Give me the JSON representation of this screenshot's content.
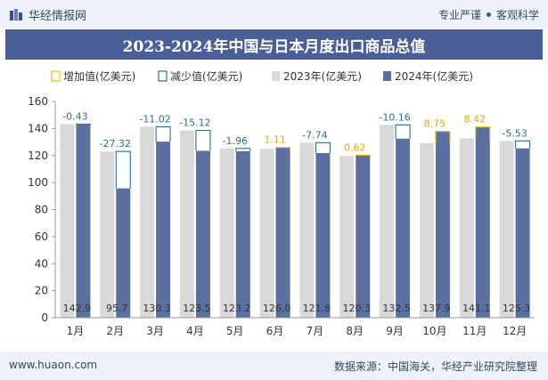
{
  "brand": {
    "name": "华经情报网"
  },
  "tagline": {
    "left": "专业严谨",
    "right": "客观科学"
  },
  "footer": {
    "website": "www.huaon.com",
    "source": "数据来源：中国海关，华经产业研究院整理"
  },
  "colors": {
    "bar_2023": "#d9d9d9",
    "bar_2024": "#5b6fa1",
    "increase": "#f2c200",
    "decrease": "#2e6d8f",
    "title_bg": "#4a5f95",
    "topbar_bg": "#eef1f7"
  },
  "chart_data": {
    "type": "bar",
    "title": "2023-2024年中国与日本月度出口商品总值",
    "categories": [
      "1月",
      "2月",
      "3月",
      "4月",
      "5月",
      "6月",
      "7月",
      "8月",
      "9月",
      "10月",
      "11月",
      "12月"
    ],
    "series": [
      {
        "name": "2023年(亿美元)",
        "values": [
          143.3,
          123.0,
          141.3,
          138.6,
          125.2,
          124.9,
          129.5,
          119.7,
          142.7,
          129.2,
          132.7,
          130.8
        ]
      },
      {
        "name": "2024年(亿美元)",
        "values": [
          142.9,
          95.7,
          130.3,
          123.5,
          123.2,
          126.0,
          121.8,
          120.3,
          132.5,
          137.9,
          141.1,
          125.3
        ]
      }
    ],
    "value_labels": [
      "142.9",
      "95.7",
      "130.3",
      "123.5",
      "123.2",
      "126.0",
      "121.8",
      "120.3",
      "132.5",
      "137.9",
      "141.1",
      "125.3"
    ],
    "change": [
      -0.43,
      -27.32,
      -11.02,
      -15.12,
      -1.96,
      1.11,
      -7.74,
      0.62,
      -10.16,
      8.75,
      8.42,
      -5.53
    ],
    "change_labels": [
      "-0.43",
      "-27.32",
      "-11.02",
      "-15.12",
      "-1.96",
      "1.11",
      "-7.74",
      "0.62",
      "-10.16",
      "8.75",
      "8.42",
      "-5.53"
    ],
    "legend": [
      {
        "key": "increase",
        "label": "增加值(亿美元)"
      },
      {
        "key": "decrease",
        "label": "减少值(亿美元)"
      },
      {
        "key": "bar_2023",
        "label": "2023年(亿美元)"
      },
      {
        "key": "bar_2024",
        "label": "2024年(亿美元)"
      }
    ],
    "yticks": [
      "0",
      "20",
      "40",
      "60",
      "80",
      "100",
      "120",
      "140",
      "160"
    ],
    "ylim": [
      0,
      160
    ],
    "legend_position": "top"
  }
}
